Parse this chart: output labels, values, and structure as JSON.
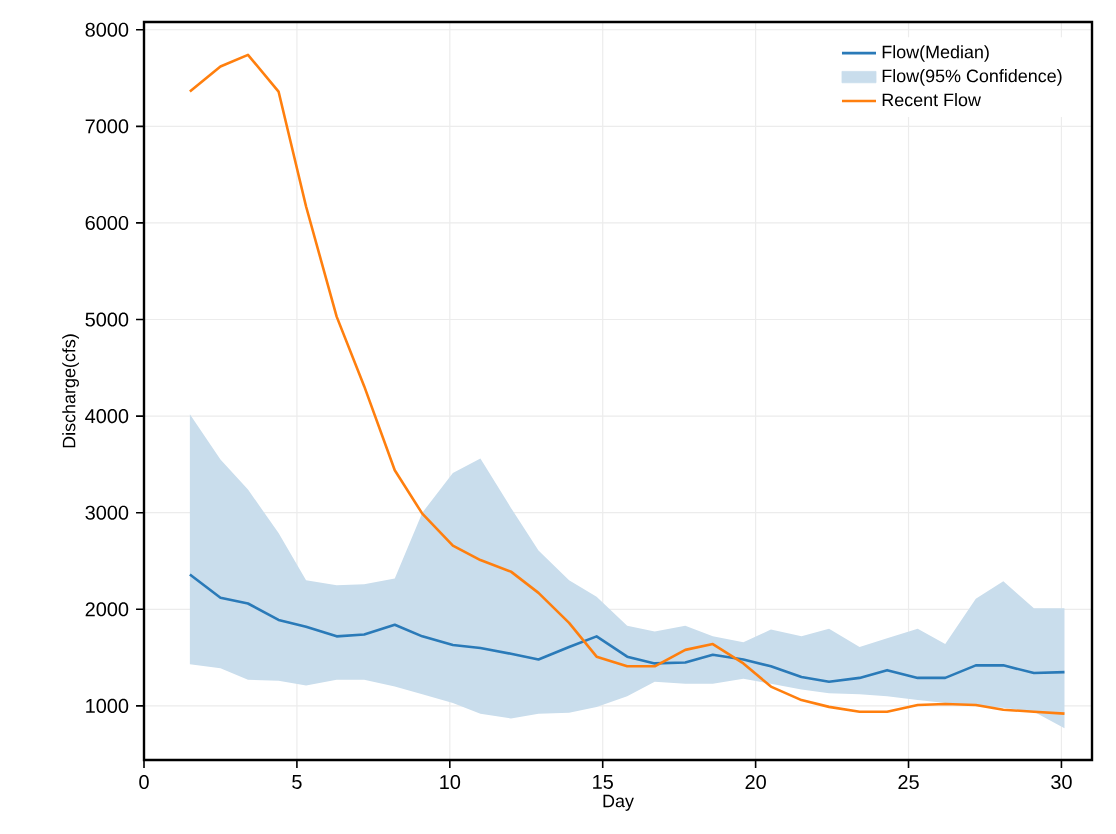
{
  "chart_data": {
    "type": "line",
    "xlabel": "Day",
    "ylabel": "Discharge(cfs)",
    "x": [
      1.5,
      2.5,
      3.4,
      4.4,
      5.3,
      6.3,
      7.2,
      8.2,
      9.1,
      10.1,
      11.0,
      12.0,
      12.9,
      13.9,
      14.8,
      15.8,
      16.7,
      17.7,
      18.6,
      19.6,
      20.5,
      21.5,
      22.4,
      23.4,
      24.3,
      25.3,
      26.2,
      27.2,
      28.1,
      29.1,
      30.1
    ],
    "series": [
      {
        "name": "Flow(Median)",
        "color": "#2a7ab8",
        "values": [
          2360,
          2120,
          2060,
          1890,
          1820,
          1720,
          1740,
          1840,
          1720,
          1630,
          1600,
          1540,
          1480,
          1610,
          1720,
          1510,
          1440,
          1450,
          1530,
          1480,
          1410,
          1300,
          1250,
          1290,
          1370,
          1290,
          1290,
          1420,
          1420,
          1340,
          1350
        ]
      },
      {
        "name": "Flow(95% Confidence)",
        "type": "area",
        "color": "#c9ddec",
        "values": [
          null,
          null,
          null,
          null,
          null,
          null,
          null,
          null,
          null,
          null,
          null,
          null,
          null,
          null,
          null,
          null,
          null,
          null,
          null,
          null,
          null,
          null,
          null,
          null,
          null,
          null,
          null,
          null,
          null,
          null,
          null
        ],
        "lower": [
          1430,
          1390,
          1270,
          1260,
          1210,
          1270,
          1270,
          1200,
          1120,
          1030,
          920,
          870,
          920,
          930,
          990,
          1100,
          1250,
          1230,
          1230,
          1280,
          1230,
          1170,
          1130,
          1120,
          1100,
          1060,
          1030,
          1000,
          980,
          940,
          770
        ],
        "upper": [
          4020,
          3550,
          3240,
          2790,
          2300,
          2250,
          2260,
          2320,
          3000,
          3410,
          3560,
          3050,
          2610,
          2300,
          2130,
          1830,
          1770,
          1830,
          1720,
          1660,
          1790,
          1720,
          1800,
          1610,
          1700,
          1800,
          1640,
          2110,
          2290,
          2010,
          2010
        ]
      },
      {
        "name": "Recent Flow",
        "color": "#ff7f0e",
        "values": [
          7360,
          7620,
          7740,
          7360,
          6170,
          5030,
          4310,
          3440,
          2990,
          2660,
          2510,
          2390,
          2170,
          1860,
          1510,
          1410,
          1410,
          1580,
          1640,
          1440,
          1200,
          1060,
          990,
          940,
          940,
          1010,
          1020,
          1010,
          960,
          940,
          920
        ]
      }
    ],
    "xlim": [
      0,
      31
    ],
    "ylim": [
      440,
      8080
    ],
    "xticks": [
      0,
      5,
      10,
      15,
      20,
      25,
      30
    ],
    "yticks": [
      1000,
      2000,
      3000,
      4000,
      5000,
      6000,
      7000,
      8000
    ],
    "grid": true,
    "legend": "top right"
  }
}
